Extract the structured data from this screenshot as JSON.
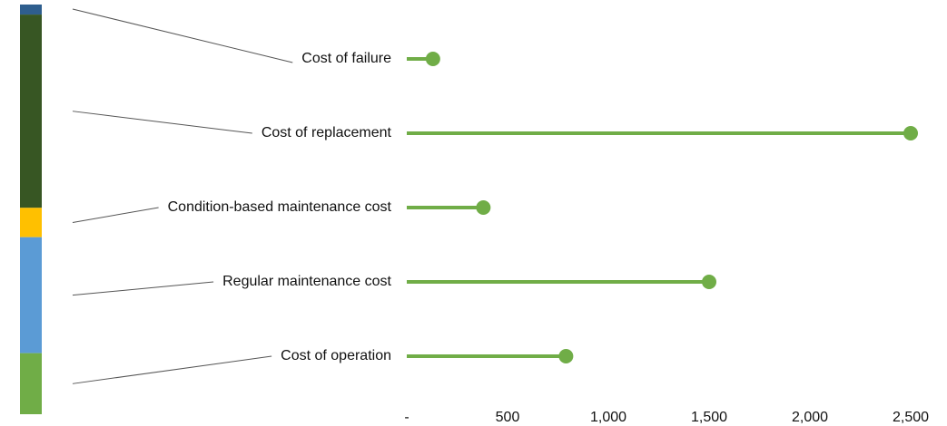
{
  "chart_data": {
    "type": "lollipop",
    "categories": [
      "Cost of failure",
      "Cost of replacement",
      "Condition-based maintenance cost",
      "Regular maintenance cost",
      "Cost of operation"
    ],
    "values": [
      130,
      2500,
      380,
      1500,
      790
    ],
    "color": "#70ad47",
    "stack_colors": [
      "#2e5e8e",
      "#375623",
      "#ffc000",
      "#5b9bd5",
      "#70ad47"
    ],
    "xlim": [
      0,
      2500
    ],
    "xticks": [
      {
        "value": 0,
        "label": "-"
      },
      500,
      {
        "value": 1000,
        "label": "1,000"
      },
      {
        "value": 1500,
        "label": "1,500"
      },
      {
        "value": 2000,
        "label": "2,000"
      },
      {
        "value": 2500,
        "label": "2,500"
      }
    ],
    "grid": false
  }
}
